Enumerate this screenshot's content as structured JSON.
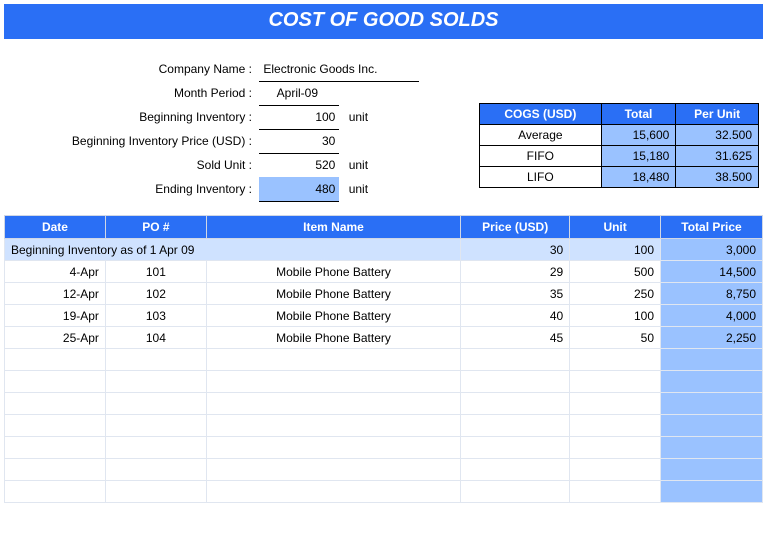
{
  "title": "COST OF GOOD SOLDS",
  "colors": {
    "header_bg": "#2a6ff5",
    "header_text": "#ffffff",
    "highlight_bg": "#9ac2ff",
    "row_highlight": "#cfe2ff",
    "grid_border": "#e0e6f0",
    "black_border": "#000000"
  },
  "typography": {
    "base_font": "Verdana",
    "base_size_pt": 9,
    "title_size_pt": 15
  },
  "form": {
    "company_name_label": "Company Name :",
    "company_name_value": "Electronic Goods Inc.",
    "month_period_label": "Month Period :",
    "month_period_value": "April-09",
    "beginning_inventory_label": "Beginning Inventory :",
    "beginning_inventory_value": "100",
    "beginning_inventory_unit": "unit",
    "beg_inv_price_label": "Beginning Inventory Price (USD) :",
    "beg_inv_price_value": "30",
    "sold_unit_label": "Sold Unit :",
    "sold_unit_value": "520",
    "sold_unit_unit": "unit",
    "ending_inventory_label": "Ending Inventory :",
    "ending_inventory_value": "480",
    "ending_inventory_unit": "unit"
  },
  "cogs": {
    "headers": {
      "label": "COGS (USD)",
      "total": "Total",
      "per_unit": "Per Unit"
    },
    "rows": [
      {
        "method": "Average",
        "total": "15,600",
        "per_unit": "32.500"
      },
      {
        "method": "FIFO",
        "total": "15,180",
        "per_unit": "31.625"
      },
      {
        "method": "LIFO",
        "total": "18,480",
        "per_unit": "38.500"
      }
    ]
  },
  "data_table": {
    "headers": {
      "date": "Date",
      "po": "PO #",
      "item": "Item Name",
      "price": "Price (USD)",
      "unit": "Unit",
      "total": "Total Price"
    },
    "beginning_row": {
      "label": "Beginning Inventory as of  1 Apr 09",
      "price": "30",
      "unit": "100",
      "total": "3,000"
    },
    "rows": [
      {
        "date": "4-Apr",
        "po": "101",
        "item": "Mobile Phone Battery",
        "price": "29",
        "unit": "500",
        "total": "14,500"
      },
      {
        "date": "12-Apr",
        "po": "102",
        "item": "Mobile Phone Battery",
        "price": "35",
        "unit": "250",
        "total": "8,750"
      },
      {
        "date": "19-Apr",
        "po": "103",
        "item": "Mobile Phone Battery",
        "price": "40",
        "unit": "100",
        "total": "4,000"
      },
      {
        "date": "25-Apr",
        "po": "104",
        "item": "Mobile Phone Battery",
        "price": "45",
        "unit": "50",
        "total": "2,250"
      }
    ],
    "empty_rows": 7
  }
}
